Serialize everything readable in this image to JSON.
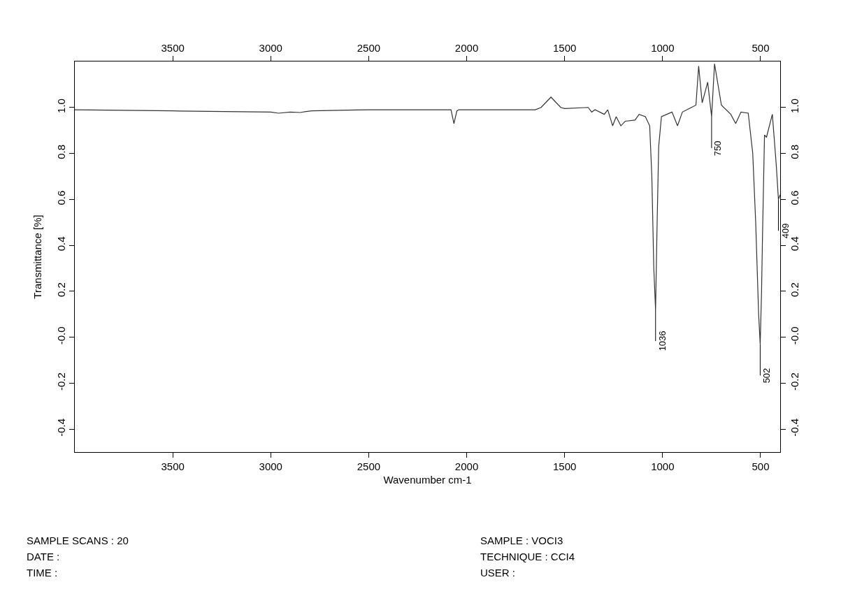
{
  "chart_data": {
    "type": "line",
    "xlabel": "Wavenumber cm-1",
    "ylabel": "Transmittance [%]",
    "x": [
      4000,
      3500,
      3000,
      2960,
      2900,
      2850,
      2820,
      2790,
      2500,
      2100,
      2080,
      2065,
      2050,
      2040,
      1650,
      1620,
      1570,
      1520,
      1500,
      1380,
      1362,
      1345,
      1298,
      1280,
      1255,
      1237,
      1213,
      1191,
      1141,
      1120,
      1088,
      1066,
      1055,
      1045,
      1036,
      1028,
      1020,
      1006,
      952,
      924,
      899,
      853,
      830,
      816,
      798,
      770,
      750,
      735,
      700,
      652,
      627,
      600,
      563,
      540,
      525,
      510,
      502,
      495,
      490,
      480,
      470,
      440,
      420,
      409,
      400
    ],
    "series": [
      {
        "color": "#333333",
        "values": [
          0.99,
          0.985,
          0.98,
          0.975,
          0.98,
          0.978,
          0.982,
          0.985,
          0.99,
          0.99,
          0.99,
          0.93,
          0.985,
          0.99,
          0.99,
          1.0,
          1.045,
          1.0,
          0.995,
          1.0,
          0.98,
          0.99,
          0.97,
          0.99,
          0.92,
          0.96,
          0.92,
          0.94,
          0.945,
          0.97,
          0.96,
          0.92,
          0.7,
          0.3,
          0.12,
          0.5,
          0.83,
          0.96,
          0.98,
          0.92,
          0.98,
          1.0,
          1.01,
          1.18,
          1.02,
          1.11,
          0.96,
          1.19,
          1.01,
          0.97,
          0.93,
          0.98,
          0.975,
          0.8,
          0.5,
          0.1,
          -0.03,
          0.2,
          0.45,
          0.88,
          0.87,
          0.97,
          0.75,
          0.6,
          0.62
        ]
      }
    ],
    "xlim": [
      4000,
      400
    ],
    "ylim": [
      -0.5,
      1.2
    ],
    "xticks": [
      3500,
      3000,
      2500,
      2000,
      1500,
      1000,
      500
    ],
    "x2lim": [
      4000,
      400
    ],
    "x2ticks": [
      3500,
      3000,
      2500,
      2000,
      1500,
      1000,
      500
    ],
    "yticks": [
      {
        "value": -0.4,
        "label": "-0.4"
      },
      {
        "value": -0.2,
        "label": "-0.2"
      },
      {
        "value": 0,
        "label": "-0.0"
      },
      {
        "value": 0.2,
        "label": "0.2"
      },
      {
        "value": 0.4,
        "label": "0.4"
      },
      {
        "value": 0.6,
        "label": "0.6"
      },
      {
        "value": 0.8,
        "label": "0.8"
      },
      {
        "value": 1.0,
        "label": "1.0"
      }
    ],
    "y2lim": [
      -0.5,
      1.2
    ],
    "y2ticks": [
      {
        "value": -0.4,
        "label": "-0.4"
      },
      {
        "value": -0.2,
        "label": "-0.2"
      },
      {
        "value": 0,
        "label": "-0.0"
      },
      {
        "value": 0.2,
        "label": "0.2"
      },
      {
        "value": 0.4,
        "label": "0.4"
      },
      {
        "value": 0.6,
        "label": "0.6"
      },
      {
        "value": 0.8,
        "label": "0.8"
      },
      {
        "value": 1.0,
        "label": "1.0"
      }
    ],
    "marker": "none",
    "line_style": "solid",
    "annotations": [
      {
        "text": "1036",
        "x": 1036,
        "y": 0.12
      },
      {
        "text": "750",
        "x": 750,
        "y": 0.96
      },
      {
        "text": "502",
        "x": 502,
        "y": -0.03
      },
      {
        "text": "409",
        "x": 409,
        "y": 0.6
      },
      "SAMPLE SCANS : 20",
      "DATE :",
      "TIME :",
      "SAMPLE : VOCI3",
      "TECHNIQUE : CCI4",
      "USER :"
    ]
  }
}
